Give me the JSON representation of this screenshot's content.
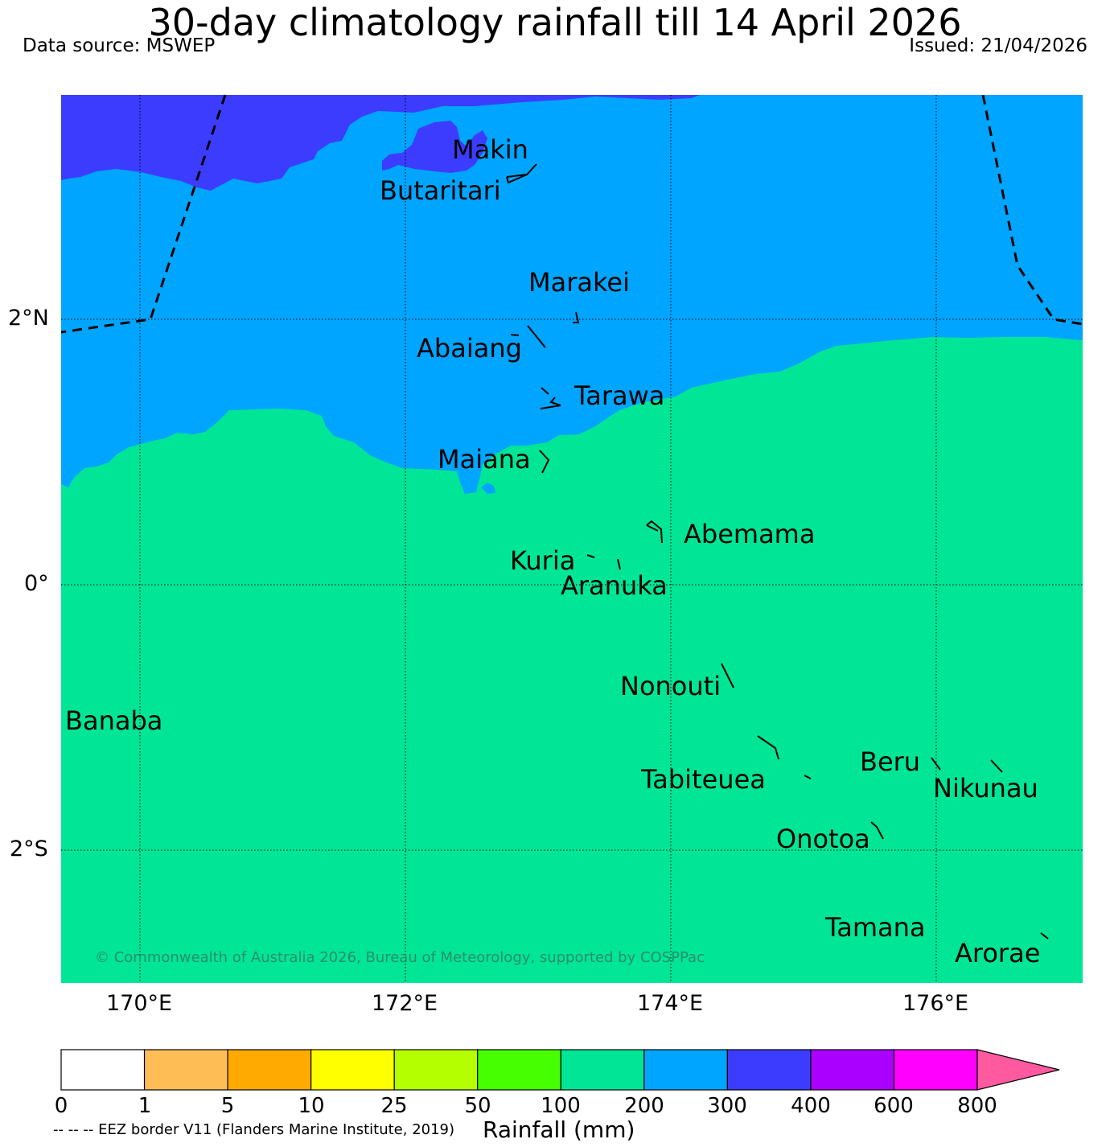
{
  "header": {
    "title": "30-day climatology rainfall till 14 April 2026",
    "source": "Data source: MSWEP",
    "issued": "Issued: 21/04/2026"
  },
  "map": {
    "lon_ticks": [
      "170°E",
      "172°E",
      "174°E",
      "176°E"
    ],
    "lat_ticks": [
      "2°N",
      "0°",
      "2°S"
    ],
    "places": {
      "makin": "Makin",
      "butaritari": "Butaritari",
      "marakei": "Marakei",
      "abaiang": "Abaiang",
      "tarawa": "Tarawa",
      "maiana": "Maiana",
      "abemama": "Abemama",
      "kuria": "Kuria",
      "aranuka": "Aranuka",
      "nonouti": "Nonouti",
      "banaba": "Banaba",
      "beru": "Beru",
      "tabiteuea": "Tabiteuea",
      "nikunau": "Nikunau",
      "onotoa": "Onotoa",
      "tamana": "Tamana",
      "arorae": "Arorae"
    },
    "copyright": "© Commonwealth of Australia 2026, Bureau of Meteorology, supported by COSPPac",
    "colors": {
      "band_100_200": "#00e696",
      "band_200_300": "#00a5ff",
      "band_300_400": "#3c3cff"
    }
  },
  "colorbar": {
    "labels": [
      "0",
      "1",
      "5",
      "10",
      "25",
      "50",
      "100",
      "200",
      "300",
      "400",
      "600",
      "800"
    ],
    "colors": [
      "#ffffff",
      "#ffbe55",
      "#ffaa00",
      "#ffff00",
      "#b4ff00",
      "#46ff00",
      "#00e696",
      "#00a5ff",
      "#3c3cff",
      "#aa00ff",
      "#ff00ff",
      "#ff5aa0"
    ],
    "title": "Rainfall (mm)",
    "eez_note": "-- -- -- EEZ border V11 (Flanders Marine Institute, 2019)"
  }
}
